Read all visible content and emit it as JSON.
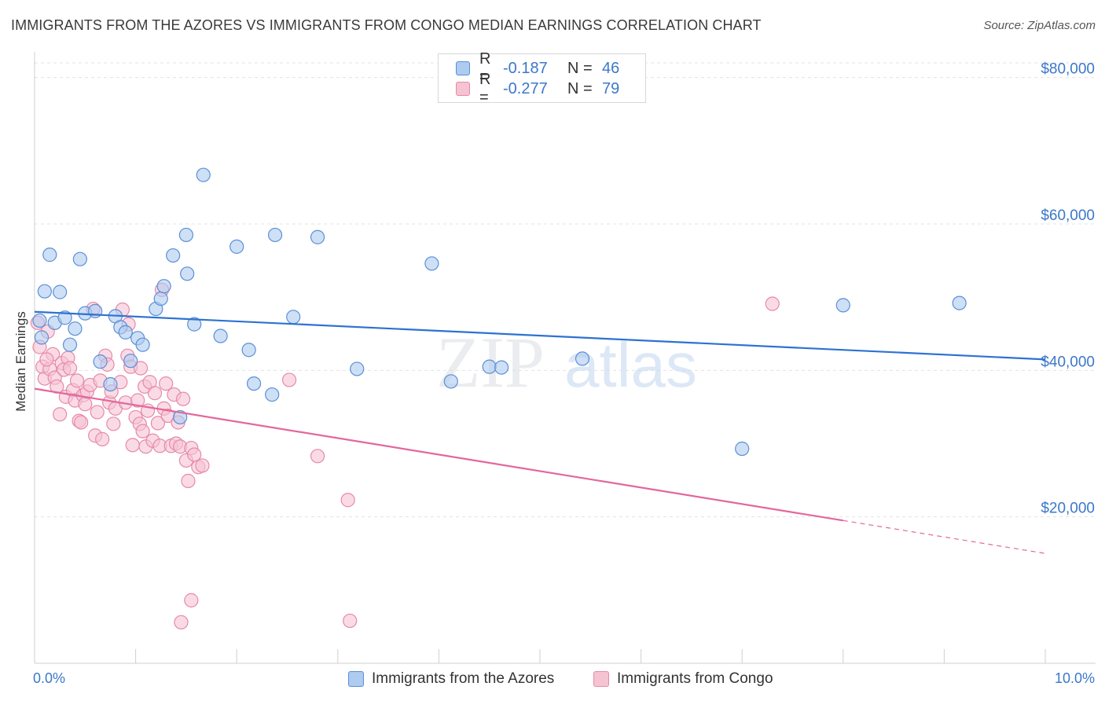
{
  "title": "IMMIGRANTS FROM THE AZORES VS IMMIGRANTS FROM CONGO MEDIAN EARNINGS CORRELATION CHART",
  "source": "Source: ZipAtlas.com",
  "watermark": {
    "zip": "ZIP",
    "atlas": "atlas"
  },
  "legend": {
    "series1": {
      "r_label": "R =",
      "r_value": "-0.187",
      "n_label": "N =",
      "n_value": "46"
    },
    "series2": {
      "r_label": "R =",
      "r_value": "-0.277",
      "n_label": "N =",
      "n_value": "79"
    }
  },
  "bottom_legend": {
    "series1": "Immigrants from the Azores",
    "series2": "Immigrants from Congo"
  },
  "colors": {
    "blue_fill": "#aecbf0",
    "blue_stroke": "#5b8fd6",
    "blue_line": "#2d72d2",
    "pink_fill": "#f6c3d3",
    "pink_stroke": "#e68aa8",
    "pink_line": "#e3679a",
    "label_blue": "#3b78c9"
  },
  "chart_data": {
    "type": "scatter",
    "title": "IMMIGRANTS FROM THE AZORES VS IMMIGRANTS FROM CONGO MEDIAN EARNINGS CORRELATION CHART",
    "xlabel": "",
    "ylabel": "Median Earnings",
    "xlim": [
      0,
      10
    ],
    "ylim": [
      0,
      82000
    ],
    "x_tick_labels": [
      "0.0%",
      "10.0%"
    ],
    "y_ticks": [
      20000,
      40000,
      60000,
      80000
    ],
    "y_tick_labels": [
      "$20,000",
      "$40,000",
      "$60,000",
      "$80,000"
    ],
    "grid": true,
    "legend_position": "top-center",
    "series": [
      {
        "name": "Immigrants from the Azores",
        "color": "#5b8fd6",
        "trend": {
          "x0": 0,
          "y0": 48000,
          "x1": 10,
          "y1": 41500
        },
        "points": [
          [
            0.05,
            46800
          ],
          [
            0.1,
            50800
          ],
          [
            0.15,
            55800
          ],
          [
            0.2,
            46500
          ],
          [
            0.25,
            50700
          ],
          [
            0.3,
            47200
          ],
          [
            0.35,
            43500
          ],
          [
            0.4,
            45700
          ],
          [
            0.45,
            55200
          ],
          [
            0.5,
            47800
          ],
          [
            0.6,
            48100
          ],
          [
            0.65,
            41200
          ],
          [
            0.75,
            38100
          ],
          [
            0.8,
            47400
          ],
          [
            0.85,
            45900
          ],
          [
            0.9,
            45200
          ],
          [
            0.95,
            41300
          ],
          [
            1.02,
            44400
          ],
          [
            1.07,
            43500
          ],
          [
            1.2,
            48400
          ],
          [
            1.25,
            49800
          ],
          [
            1.28,
            51500
          ],
          [
            1.37,
            55700
          ],
          [
            1.44,
            33600
          ],
          [
            1.5,
            58500
          ],
          [
            1.51,
            53200
          ],
          [
            1.58,
            46300
          ],
          [
            1.67,
            66700
          ],
          [
            1.84,
            44700
          ],
          [
            2.0,
            56900
          ],
          [
            2.12,
            42800
          ],
          [
            2.17,
            38200
          ],
          [
            2.35,
            36700
          ],
          [
            2.38,
            58500
          ],
          [
            2.56,
            47300
          ],
          [
            2.8,
            58200
          ],
          [
            3.19,
            40200
          ],
          [
            3.93,
            54600
          ],
          [
            4.12,
            38500
          ],
          [
            4.5,
            40500
          ],
          [
            4.62,
            40400
          ],
          [
            5.42,
            41600
          ],
          [
            7.0,
            29300
          ],
          [
            8.0,
            48900
          ],
          [
            9.15,
            49200
          ],
          [
            0.07,
            44500
          ]
        ]
      },
      {
        "name": "Immigrants from Congo",
        "color": "#e68aa8",
        "trend": {
          "x0": 0,
          "y0": 37500,
          "x1": 8.0,
          "y1": 19500,
          "dash_to": {
            "x": 10,
            "y": 15000
          }
        },
        "points": [
          [
            0.03,
            46500
          ],
          [
            0.05,
            43200
          ],
          [
            0.08,
            40500
          ],
          [
            0.1,
            38900
          ],
          [
            0.13,
            45300
          ],
          [
            0.15,
            40200
          ],
          [
            0.18,
            42200
          ],
          [
            0.2,
            39000
          ],
          [
            0.22,
            37800
          ],
          [
            0.25,
            34000
          ],
          [
            0.27,
            41000
          ],
          [
            0.29,
            40100
          ],
          [
            0.31,
            36400
          ],
          [
            0.33,
            41700
          ],
          [
            0.35,
            40300
          ],
          [
            0.38,
            37300
          ],
          [
            0.4,
            35900
          ],
          [
            0.42,
            38600
          ],
          [
            0.44,
            33100
          ],
          [
            0.46,
            32900
          ],
          [
            0.48,
            36600
          ],
          [
            0.5,
            35400
          ],
          [
            0.52,
            37100
          ],
          [
            0.55,
            38000
          ],
          [
            0.58,
            48400
          ],
          [
            0.6,
            31100
          ],
          [
            0.62,
            34300
          ],
          [
            0.65,
            38600
          ],
          [
            0.67,
            30600
          ],
          [
            0.7,
            42000
          ],
          [
            0.72,
            40800
          ],
          [
            0.74,
            35600
          ],
          [
            0.76,
            37100
          ],
          [
            0.78,
            32700
          ],
          [
            0.8,
            34800
          ],
          [
            0.85,
            38400
          ],
          [
            0.87,
            48300
          ],
          [
            0.9,
            35600
          ],
          [
            0.92,
            42000
          ],
          [
            0.93,
            46300
          ],
          [
            0.95,
            40500
          ],
          [
            0.97,
            29800
          ],
          [
            1.0,
            33600
          ],
          [
            1.02,
            35900
          ],
          [
            1.04,
            32700
          ],
          [
            1.05,
            40300
          ],
          [
            1.07,
            31700
          ],
          [
            1.09,
            37800
          ],
          [
            1.1,
            29600
          ],
          [
            1.12,
            34500
          ],
          [
            1.14,
            38400
          ],
          [
            1.17,
            30400
          ],
          [
            1.19,
            36900
          ],
          [
            1.22,
            32800
          ],
          [
            1.24,
            29700
          ],
          [
            1.26,
            51000
          ],
          [
            1.28,
            34800
          ],
          [
            1.3,
            38200
          ],
          [
            1.32,
            33800
          ],
          [
            1.35,
            29700
          ],
          [
            1.38,
            36700
          ],
          [
            1.4,
            30000
          ],
          [
            1.42,
            32900
          ],
          [
            1.44,
            29600
          ],
          [
            1.47,
            36100
          ],
          [
            1.5,
            27700
          ],
          [
            1.52,
            24900
          ],
          [
            1.55,
            29400
          ],
          [
            1.58,
            28500
          ],
          [
            1.62,
            26800
          ],
          [
            1.66,
            27000
          ],
          [
            1.45,
            5600
          ],
          [
            1.55,
            8600
          ],
          [
            2.52,
            38700
          ],
          [
            2.8,
            28300
          ],
          [
            3.1,
            22300
          ],
          [
            3.12,
            5800
          ],
          [
            7.3,
            49100
          ],
          [
            0.12,
            41500
          ]
        ]
      }
    ]
  }
}
